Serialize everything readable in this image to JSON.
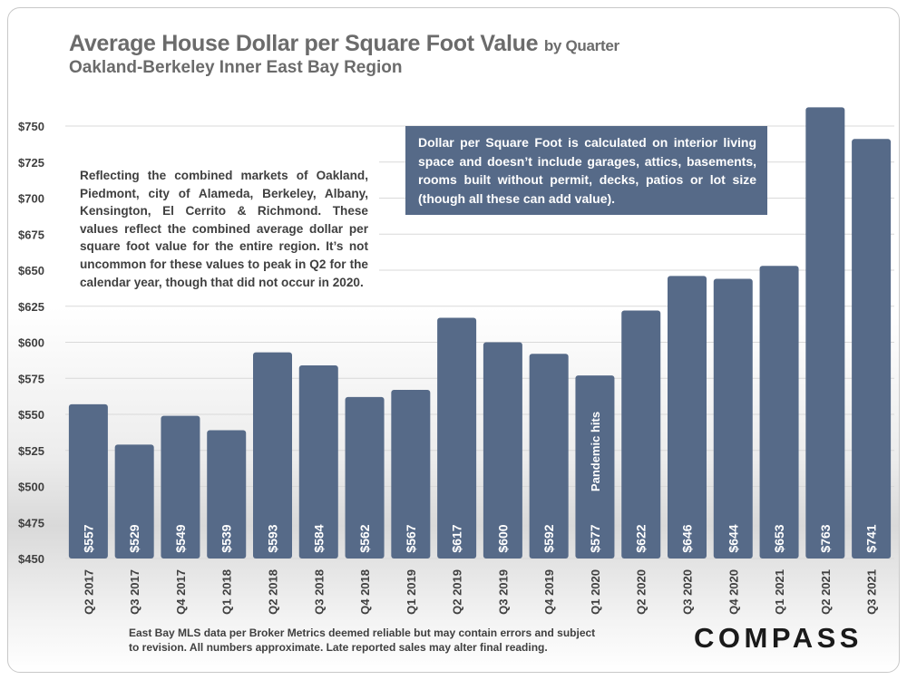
{
  "header": {
    "title": "Average House Dollar per Square Foot Value",
    "title_suffix": "by Quarter",
    "subtitle": "Oakland-Berkeley Inner East Bay Region"
  },
  "callouts": {
    "left": "Reflecting the combined markets of Oakland, Piedmont, city of Alameda, Berkeley, Albany, Kensington, El Cerrito & Richmond. These values reflect the combined average dollar per square foot value for the entire region. It’s not uncommon for these values to peak in Q2 for the calendar year, though that did not occur in 2020.",
    "right": "Dollar per Square Foot is calculated on interior living space and doesn’t include garages, attics, basements, rooms built without permit, decks, patios or lot size (though all these can add value)."
  },
  "footnote": {
    "line1": "East Bay MLS data per Broker Metrics deemed reliable but may contain errors and subject",
    "line2": "to revision. All numbers approximate. Late reported sales may alter final reading."
  },
  "logo": "COMPASS",
  "colors": {
    "bar": "#566a88",
    "grid": "#d9d9d9",
    "axis_text": "#404040",
    "title": "#6b6b6b"
  },
  "chart_data": {
    "type": "bar",
    "categories": [
      "Q2 2017",
      "Q3 2017",
      "Q4 2017",
      "Q1 2018",
      "Q2 2018",
      "Q3 2018",
      "Q4 2018",
      "Q1 2019",
      "Q2 2019",
      "Q3 2019",
      "Q4 2019",
      "Q1 2020",
      "Q2 2020",
      "Q3 2020",
      "Q4 2020",
      "Q1 2021",
      "Q2 2021",
      "Q3 2021"
    ],
    "values": [
      557,
      529,
      549,
      539,
      593,
      584,
      562,
      567,
      617,
      600,
      592,
      577,
      622,
      646,
      644,
      653,
      763,
      741
    ],
    "value_labels": [
      "$557",
      "$529",
      "$549",
      "$539",
      "$593",
      "$584",
      "$562",
      "$567",
      "$617",
      "$600",
      "$592",
      "$577",
      "$622",
      "$646",
      "$644",
      "$653",
      "$763",
      "$741"
    ],
    "yticks": [
      450,
      475,
      500,
      525,
      550,
      575,
      600,
      625,
      650,
      675,
      700,
      725,
      750
    ],
    "ytick_labels": [
      "$450",
      "$475",
      "$500",
      "$525",
      "$550",
      "$575",
      "$600",
      "$625",
      "$650",
      "$675",
      "$700",
      "$725",
      "$750"
    ],
    "ylim": [
      450,
      765
    ],
    "grid": true,
    "annotations": [
      {
        "category": "Q1 2020",
        "text": "Pandemic hits"
      }
    ]
  }
}
